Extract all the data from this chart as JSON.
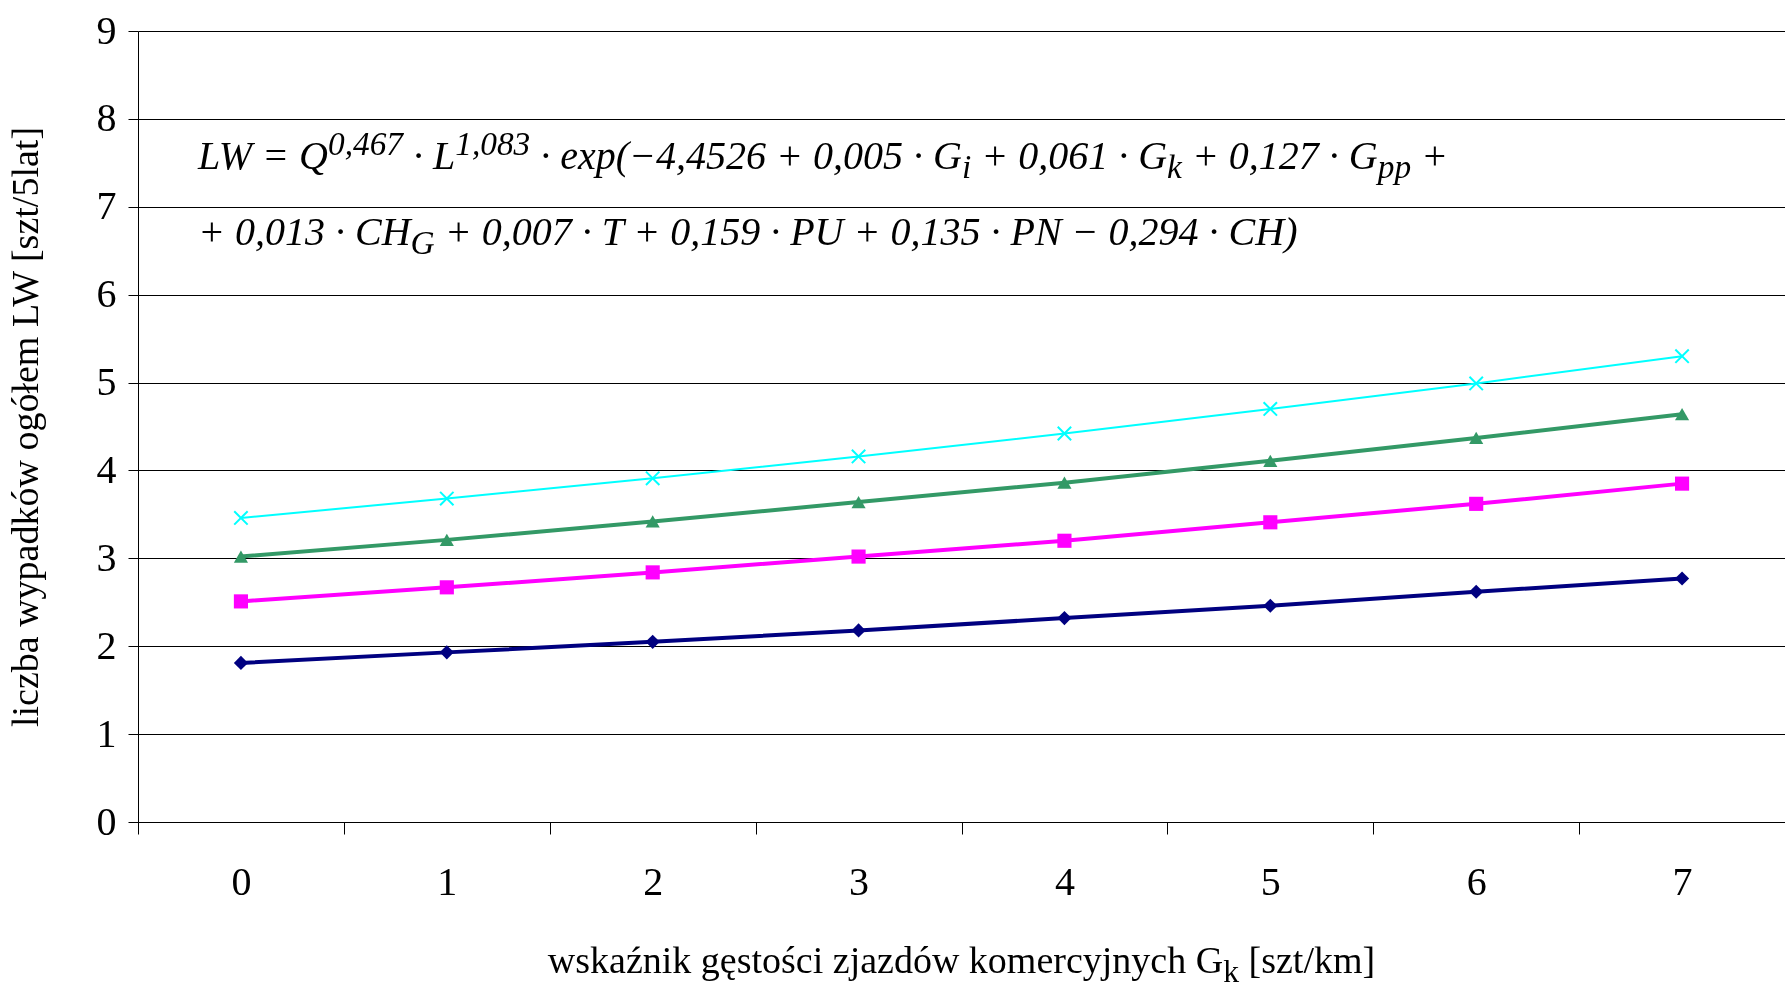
{
  "chart_data": {
    "type": "line",
    "xlabel": "wskaźnik gęstości zjazdów komercyjnych G$_{k}$ [szt/km]",
    "ylabel": "liczba wypadków ogółem LW [szt/5lat]",
    "annotations": [
      "LW = Q$^{0,467}$ · L$^{1,083}$ · exp(−4,4526 + 0,005 · G$_{i}$ + 0,061 · G$_{k}$ + 0,127 · G$_{pp}$ +",
      "+ 0,013 · CH$_{G}$ + 0,007 · T + 0,159 · PU + 0,135 · PN − 0,294 · CH)"
    ],
    "categories": [
      "0",
      "1",
      "2",
      "3",
      "4",
      "5",
      "6",
      "7"
    ],
    "ylim": [
      0,
      9
    ],
    "yticks": [
      0,
      1,
      2,
      3,
      4,
      5,
      6,
      7,
      8,
      9
    ],
    "grid": "y",
    "line_style": "solid",
    "series": [
      {
        "color": "#000080",
        "marker": "diamond",
        "values": [
          1.81,
          1.93,
          2.05,
          2.18,
          2.32,
          2.46,
          2.62,
          2.77
        ]
      },
      {
        "color": "#ff00ff",
        "marker": "square",
        "values": [
          2.51,
          2.67,
          2.84,
          3.02,
          3.2,
          3.41,
          3.62,
          3.85
        ]
      },
      {
        "color": "#339966",
        "marker": "triangle",
        "values": [
          3.02,
          3.21,
          3.42,
          3.64,
          3.86,
          4.11,
          4.37,
          4.64
        ]
      },
      {
        "color": "#00ffff",
        "marker": "cross",
        "values": [
          3.46,
          3.68,
          3.91,
          4.16,
          4.42,
          4.7,
          4.99,
          5.3
        ]
      }
    ]
  }
}
